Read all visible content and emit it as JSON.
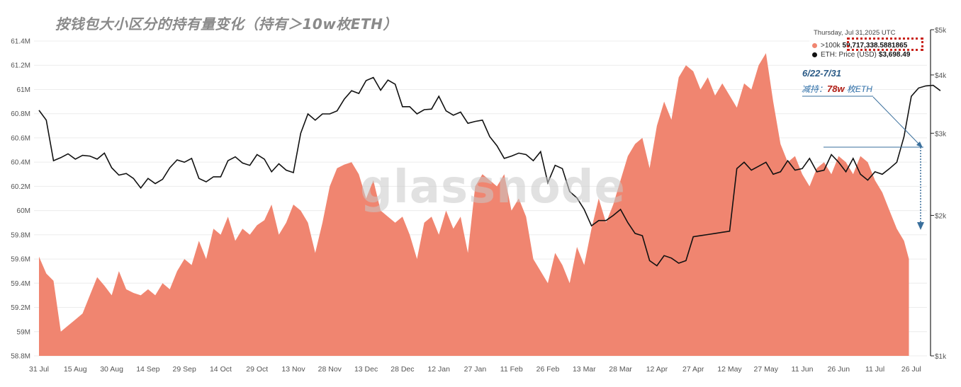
{
  "chart_data": {
    "type": "area",
    "title": "按钱包大小区分的持有量变化（持有＞10w枚ETH）",
    "watermark": "glassnode",
    "x_tick_labels": [
      "31 Jul",
      "15 Aug",
      "30 Aug",
      "14 Sep",
      "29 Sep",
      "14 Oct",
      "29 Oct",
      "13 Nov",
      "28 Nov",
      "13 Dec",
      "28 Dec",
      "12 Jan",
      "27 Jan",
      "11 Feb",
      "26 Feb",
      "13 Mar",
      "28 Mar",
      "12 Apr",
      "27 Apr",
      "12 May",
      "27 May",
      "11 Jun",
      "26 Jun",
      "11 Jul",
      "26 Jul"
    ],
    "y_left": {
      "ticks": [
        58.8,
        59.0,
        59.2,
        59.4,
        59.6,
        59.8,
        60.0,
        60.2,
        60.4,
        60.6,
        60.8,
        61.0,
        61.2,
        61.4
      ],
      "tick_labels": [
        "58.8M",
        "59M",
        "59.2M",
        "59.4M",
        "59.6M",
        "59.8M",
        "60M",
        "60.2M",
        "60.4M",
        "60.6M",
        "60.8M",
        "61M",
        "61.2M",
        "61.4M"
      ],
      "range": [
        58.8,
        61.4
      ]
    },
    "y_right": {
      "scale": "log",
      "ticks": [
        1000,
        2000,
        3000,
        4000,
        5000
      ],
      "tick_labels": [
        "$1k",
        "$2k",
        "$3k",
        "$4k",
        "$5k"
      ],
      "range": [
        1000,
        5000
      ]
    },
    "grid": "horizontal",
    "series": [
      {
        "name": ">100k",
        "type": "area",
        "color": "#f08570",
        "points": [
          [
            0,
            59.62
          ],
          [
            3,
            59.48
          ],
          [
            6,
            59.42
          ],
          [
            9,
            59.0
          ],
          [
            12,
            59.05
          ],
          [
            15,
            59.1
          ],
          [
            18,
            59.15
          ],
          [
            21,
            59.3
          ],
          [
            24,
            59.45
          ],
          [
            27,
            59.38
          ],
          [
            30,
            59.3
          ],
          [
            33,
            59.5
          ],
          [
            36,
            59.35
          ],
          [
            39,
            59.32
          ],
          [
            42,
            59.3
          ],
          [
            45,
            59.35
          ],
          [
            48,
            59.3
          ],
          [
            51,
            59.4
          ],
          [
            54,
            59.35
          ],
          [
            57,
            59.5
          ],
          [
            60,
            59.6
          ],
          [
            63,
            59.55
          ],
          [
            66,
            59.75
          ],
          [
            69,
            59.6
          ],
          [
            72,
            59.85
          ],
          [
            75,
            59.8
          ],
          [
            78,
            59.95
          ],
          [
            81,
            59.75
          ],
          [
            84,
            59.85
          ],
          [
            87,
            59.8
          ],
          [
            90,
            59.88
          ],
          [
            93,
            59.92
          ],
          [
            96,
            60.05
          ],
          [
            99,
            59.8
          ],
          [
            102,
            59.9
          ],
          [
            105,
            60.05
          ],
          [
            108,
            60.0
          ],
          [
            111,
            59.9
          ],
          [
            114,
            59.65
          ],
          [
            117,
            59.9
          ],
          [
            120,
            60.2
          ],
          [
            123,
            60.35
          ],
          [
            126,
            60.38
          ],
          [
            129,
            60.4
          ],
          [
            132,
            60.3
          ],
          [
            135,
            60.1
          ],
          [
            138,
            60.25
          ],
          [
            141,
            60.0
          ],
          [
            144,
            59.95
          ],
          [
            147,
            59.9
          ],
          [
            150,
            59.95
          ],
          [
            153,
            59.8
          ],
          [
            156,
            59.6
          ],
          [
            159,
            59.9
          ],
          [
            162,
            59.95
          ],
          [
            165,
            59.8
          ],
          [
            168,
            60.0
          ],
          [
            171,
            59.85
          ],
          [
            174,
            59.95
          ],
          [
            177,
            59.65
          ],
          [
            180,
            60.2
          ],
          [
            183,
            60.3
          ],
          [
            186,
            60.25
          ],
          [
            189,
            60.2
          ],
          [
            192,
            60.3
          ],
          [
            195,
            60.0
          ],
          [
            198,
            60.1
          ],
          [
            201,
            59.95
          ],
          [
            204,
            59.6
          ],
          [
            207,
            59.5
          ],
          [
            210,
            59.4
          ],
          [
            213,
            59.65
          ],
          [
            216,
            59.55
          ],
          [
            219,
            59.4
          ],
          [
            222,
            59.7
          ],
          [
            225,
            59.55
          ],
          [
            228,
            59.85
          ],
          [
            231,
            60.1
          ],
          [
            234,
            59.9
          ],
          [
            237,
            60.05
          ],
          [
            240,
            60.25
          ],
          [
            243,
            60.45
          ],
          [
            246,
            60.55
          ],
          [
            249,
            60.6
          ],
          [
            252,
            60.35
          ],
          [
            255,
            60.7
          ],
          [
            258,
            60.9
          ],
          [
            261,
            60.75
          ],
          [
            264,
            61.1
          ],
          [
            267,
            61.2
          ],
          [
            270,
            61.15
          ],
          [
            273,
            61.0
          ],
          [
            276,
            61.1
          ],
          [
            279,
            60.95
          ],
          [
            282,
            61.05
          ],
          [
            285,
            60.95
          ],
          [
            288,
            60.85
          ],
          [
            291,
            61.05
          ],
          [
            294,
            61.0
          ],
          [
            297,
            61.2
          ],
          [
            300,
            61.3
          ],
          [
            303,
            60.9
          ],
          [
            306,
            60.55
          ],
          [
            309,
            60.4
          ],
          [
            312,
            60.45
          ],
          [
            315,
            60.3
          ],
          [
            318,
            60.2
          ],
          [
            321,
            60.35
          ],
          [
            324,
            60.4
          ],
          [
            327,
            60.3
          ],
          [
            330,
            60.45
          ],
          [
            333,
            60.4
          ],
          [
            336,
            60.3
          ],
          [
            339,
            60.45
          ],
          [
            342,
            60.4
          ],
          [
            345,
            60.25
          ],
          [
            348,
            60.15
          ],
          [
            351,
            60.0
          ],
          [
            354,
            59.85
          ],
          [
            357,
            59.75
          ],
          [
            359,
            59.6
          ]
        ]
      },
      {
        "name": "ETH: Price (USD)",
        "type": "line",
        "color": "#111111",
        "points": [
          [
            0,
            3360
          ],
          [
            3,
            3200
          ],
          [
            6,
            2620
          ],
          [
            9,
            2660
          ],
          [
            12,
            2710
          ],
          [
            15,
            2640
          ],
          [
            18,
            2690
          ],
          [
            21,
            2680
          ],
          [
            24,
            2640
          ],
          [
            27,
            2720
          ],
          [
            30,
            2530
          ],
          [
            33,
            2440
          ],
          [
            36,
            2460
          ],
          [
            39,
            2400
          ],
          [
            42,
            2290
          ],
          [
            45,
            2400
          ],
          [
            48,
            2340
          ],
          [
            51,
            2390
          ],
          [
            54,
            2530
          ],
          [
            57,
            2630
          ],
          [
            60,
            2600
          ],
          [
            63,
            2650
          ],
          [
            66,
            2400
          ],
          [
            69,
            2360
          ],
          [
            72,
            2420
          ],
          [
            75,
            2420
          ],
          [
            78,
            2620
          ],
          [
            81,
            2670
          ],
          [
            84,
            2590
          ],
          [
            87,
            2560
          ],
          [
            90,
            2700
          ],
          [
            93,
            2640
          ],
          [
            96,
            2480
          ],
          [
            99,
            2580
          ],
          [
            102,
            2500
          ],
          [
            105,
            2470
          ],
          [
            108,
            3000
          ],
          [
            111,
            3300
          ],
          [
            114,
            3200
          ],
          [
            117,
            3300
          ],
          [
            120,
            3300
          ],
          [
            123,
            3350
          ],
          [
            126,
            3550
          ],
          [
            129,
            3700
          ],
          [
            132,
            3650
          ],
          [
            135,
            3890
          ],
          [
            138,
            3950
          ],
          [
            141,
            3710
          ],
          [
            144,
            3900
          ],
          [
            147,
            3820
          ],
          [
            150,
            3420
          ],
          [
            153,
            3420
          ],
          [
            156,
            3300
          ],
          [
            159,
            3370
          ],
          [
            162,
            3380
          ],
          [
            165,
            3600
          ],
          [
            168,
            3350
          ],
          [
            171,
            3280
          ],
          [
            174,
            3330
          ],
          [
            177,
            3150
          ],
          [
            180,
            3180
          ],
          [
            183,
            3200
          ],
          [
            186,
            2950
          ],
          [
            189,
            2820
          ],
          [
            192,
            2650
          ],
          [
            195,
            2680
          ],
          [
            198,
            2720
          ],
          [
            201,
            2700
          ],
          [
            204,
            2620
          ],
          [
            207,
            2740
          ],
          [
            210,
            2350
          ],
          [
            213,
            2560
          ],
          [
            216,
            2520
          ],
          [
            219,
            2250
          ],
          [
            222,
            2180
          ],
          [
            225,
            2060
          ],
          [
            228,
            1900
          ],
          [
            231,
            1950
          ],
          [
            234,
            1950
          ],
          [
            237,
            2000
          ],
          [
            240,
            2060
          ],
          [
            243,
            1930
          ],
          [
            246,
            1830
          ],
          [
            249,
            1810
          ],
          [
            252,
            1600
          ],
          [
            255,
            1560
          ],
          [
            258,
            1640
          ],
          [
            261,
            1620
          ],
          [
            264,
            1580
          ],
          [
            267,
            1600
          ],
          [
            270,
            1800
          ],
          [
            273,
            1810
          ],
          [
            276,
            1820
          ],
          [
            279,
            1830
          ],
          [
            282,
            1840
          ],
          [
            285,
            1850
          ],
          [
            288,
            2520
          ],
          [
            291,
            2600
          ],
          [
            294,
            2500
          ],
          [
            297,
            2550
          ],
          [
            300,
            2600
          ],
          [
            303,
            2450
          ],
          [
            306,
            2480
          ],
          [
            309,
            2620
          ],
          [
            312,
            2500
          ],
          [
            315,
            2520
          ],
          [
            318,
            2650
          ],
          [
            321,
            2480
          ],
          [
            324,
            2500
          ],
          [
            327,
            2700
          ],
          [
            330,
            2600
          ],
          [
            333,
            2480
          ],
          [
            336,
            2650
          ],
          [
            339,
            2450
          ],
          [
            342,
            2380
          ],
          [
            345,
            2480
          ],
          [
            348,
            2450
          ],
          [
            351,
            2520
          ],
          [
            354,
            2600
          ],
          [
            357,
            2950
          ],
          [
            360,
            3600
          ],
          [
            363,
            3750
          ],
          [
            366,
            3790
          ],
          [
            369,
            3800
          ],
          [
            372,
            3700
          ]
        ]
      }
    ],
    "tooltip": {
      "date": "Thursday, Jul 31,2025 UTC",
      "rows": [
        {
          "label": ">100k",
          "value": "59,717,338.5881865",
          "color": "#f08570"
        },
        {
          "label": "ETH: Price (USD)",
          "value": "$3,698.49",
          "color": "#111111"
        }
      ]
    },
    "annotation": {
      "date_range": "6/22-7/31",
      "prefix": "减持：",
      "amount": "78w",
      "suffix": " 枚ETH"
    }
  }
}
